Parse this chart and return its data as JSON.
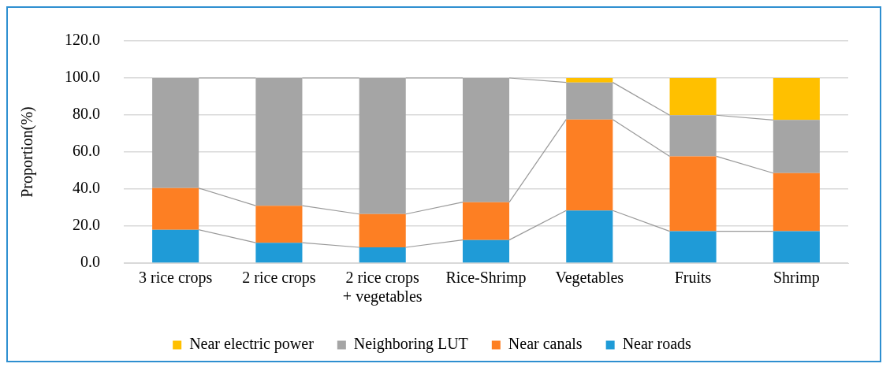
{
  "chart_data": {
    "type": "bar",
    "stacked": true,
    "ylabel": "Proportion(%)",
    "categories": [
      "3 rice crops",
      "2 rice crops",
      "2 rice crops\n+ vegetables",
      "Rice-Shrimp",
      "Vegetables",
      "Fruits",
      "Shrimp"
    ],
    "series": [
      {
        "name": "Near roads",
        "color": "#1f9bd7",
        "values": [
          18,
          11,
          8.5,
          12.5,
          28.4,
          17.2,
          17.2
        ]
      },
      {
        "name": "Near canals",
        "color": "#fd7f23",
        "values": [
          22.5,
          20,
          18,
          20.4,
          49.2,
          40.5,
          31.4
        ]
      },
      {
        "name": "Neighboring LUT",
        "color": "#a5a5a5",
        "values": [
          59.5,
          69,
          73.5,
          67.1,
          20,
          22.2,
          28.7
        ]
      },
      {
        "name": "Near electric power",
        "color": "#ffc000",
        "values": [
          0,
          0,
          0,
          0,
          2.4,
          20.1,
          22.7
        ]
      }
    ],
    "ylim": [
      0,
      120
    ],
    "yticks": [
      {
        "value": 0,
        "label": "0.0"
      },
      {
        "value": 20,
        "label": "20.0"
      },
      {
        "value": 40,
        "label": "40.0"
      },
      {
        "value": 60,
        "label": "60.0"
      },
      {
        "value": 80,
        "label": "80.0"
      },
      {
        "value": 100,
        "label": "100.0"
      },
      {
        "value": 120,
        "label": "120.0"
      }
    ],
    "grid": "y",
    "legend": "bottom"
  }
}
